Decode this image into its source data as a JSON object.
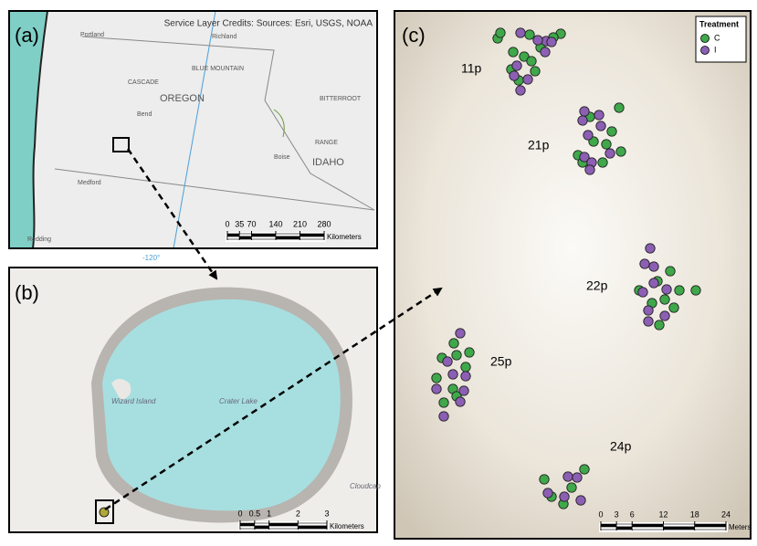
{
  "panel_a": {
    "label": "(a)",
    "credits": "Service Layer Credits: Sources: Esri, USGS, NOAA",
    "places": [
      "Portland",
      "Richland",
      "CASCADE",
      "BLUE MOUNTAIN",
      "OREGON",
      "Bend",
      "Medford",
      "IDAHO",
      "Boise",
      "BITTERROOT",
      "RANGE",
      "Redding"
    ],
    "meridian": "-120°",
    "scale": {
      "ticks": [
        0,
        35,
        70,
        140,
        210,
        280
      ],
      "unit": "Kilometers"
    }
  },
  "panel_b": {
    "label": "(b)",
    "places": [
      "Wizard Island",
      "Crater Lake",
      "Cloudcap"
    ],
    "scale": {
      "ticks": [
        0,
        0.5,
        1,
        2,
        3
      ],
      "unit": "Kilometers"
    }
  },
  "panel_c": {
    "label": "(c)",
    "legend": {
      "title": "Treatment",
      "items": [
        {
          "name": "C",
          "color": "#3fa84a"
        },
        {
          "name": "I",
          "color": "#8c5fb4"
        }
      ]
    },
    "plots": [
      "11p",
      "21p",
      "22p",
      "25p",
      "24p"
    ],
    "scale": {
      "ticks": [
        0,
        3,
        6,
        12,
        18,
        24
      ],
      "unit": "Meters"
    }
  }
}
